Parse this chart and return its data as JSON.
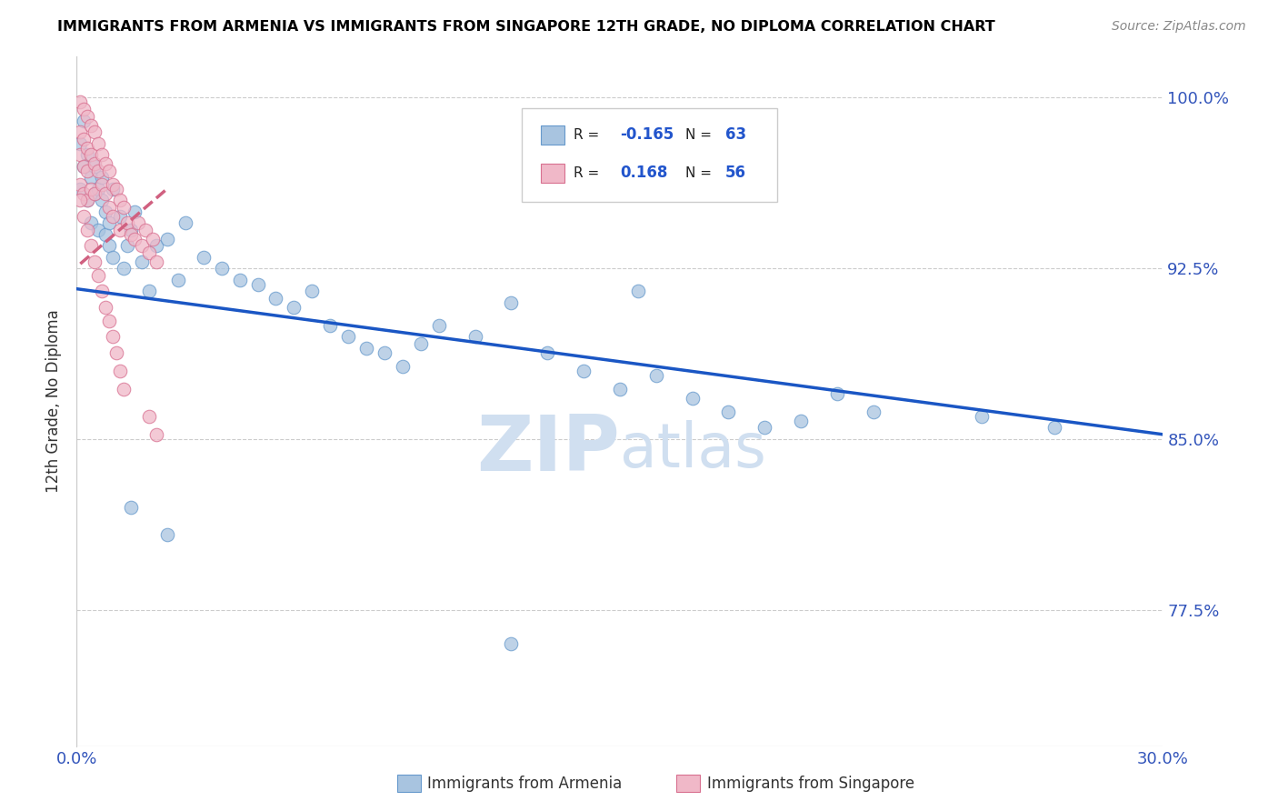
{
  "title": "IMMIGRANTS FROM ARMENIA VS IMMIGRANTS FROM SINGAPORE 12TH GRADE, NO DIPLOMA CORRELATION CHART",
  "source": "Source: ZipAtlas.com",
  "ylabel": "12th Grade, No Diploma",
  "xlim": [
    0.0,
    0.3
  ],
  "ylim": [
    0.715,
    1.018
  ],
  "yticks": [
    0.775,
    0.85,
    0.925,
    1.0
  ],
  "yticklabels": [
    "77.5%",
    "85.0%",
    "92.5%",
    "100.0%"
  ],
  "xtick_positions": [
    0.0,
    0.05,
    0.1,
    0.15,
    0.2,
    0.25,
    0.3
  ],
  "xticklabels": [
    "0.0%",
    "",
    "",
    "",
    "",
    "",
    "30.0%"
  ],
  "armenia_color": "#a8c4e0",
  "armenia_edge": "#6699cc",
  "singapore_color": "#f0b8c8",
  "singapore_edge": "#d87090",
  "armenia_line_color": "#1a56c4",
  "singapore_line_color": "#d06080",
  "watermark_color": "#d0dff0",
  "armenia_R": -0.165,
  "armenia_N": 63,
  "singapore_R": 0.168,
  "singapore_N": 56,
  "arm_line_x0": 0.0,
  "arm_line_y0": 0.916,
  "arm_line_x1": 0.3,
  "arm_line_y1": 0.852,
  "sing_line_x0": 0.001,
  "sing_line_y0": 0.927,
  "sing_line_x1": 0.025,
  "sing_line_y1": 0.96,
  "armenia_x": [
    0.001,
    0.001,
    0.002,
    0.002,
    0.003,
    0.003,
    0.004,
    0.004,
    0.005,
    0.005,
    0.006,
    0.006,
    0.007,
    0.007,
    0.008,
    0.008,
    0.009,
    0.009,
    0.01,
    0.01,
    0.012,
    0.013,
    0.014,
    0.015,
    0.016,
    0.018,
    0.02,
    0.022,
    0.025,
    0.028,
    0.03,
    0.035,
    0.04,
    0.045,
    0.05,
    0.055,
    0.06,
    0.065,
    0.07,
    0.075,
    0.08,
    0.085,
    0.09,
    0.095,
    0.1,
    0.11,
    0.12,
    0.13,
    0.14,
    0.15,
    0.155,
    0.16,
    0.17,
    0.18,
    0.19,
    0.2,
    0.21,
    0.22,
    0.25,
    0.27,
    0.015,
    0.025,
    0.12
  ],
  "armenia_y": [
    0.96,
    0.98,
    0.97,
    0.99,
    0.975,
    0.955,
    0.965,
    0.945,
    0.958,
    0.97,
    0.942,
    0.96,
    0.955,
    0.965,
    0.94,
    0.95,
    0.935,
    0.945,
    0.96,
    0.93,
    0.948,
    0.925,
    0.935,
    0.942,
    0.95,
    0.928,
    0.915,
    0.935,
    0.938,
    0.92,
    0.945,
    0.93,
    0.925,
    0.92,
    0.918,
    0.912,
    0.908,
    0.915,
    0.9,
    0.895,
    0.89,
    0.888,
    0.882,
    0.892,
    0.9,
    0.895,
    0.91,
    0.888,
    0.88,
    0.872,
    0.915,
    0.878,
    0.868,
    0.862,
    0.855,
    0.858,
    0.87,
    0.862,
    0.86,
    0.855,
    0.82,
    0.808,
    0.76
  ],
  "singapore_x": [
    0.001,
    0.001,
    0.001,
    0.001,
    0.002,
    0.002,
    0.002,
    0.002,
    0.003,
    0.003,
    0.003,
    0.003,
    0.004,
    0.004,
    0.004,
    0.005,
    0.005,
    0.005,
    0.006,
    0.006,
    0.007,
    0.007,
    0.008,
    0.008,
    0.009,
    0.009,
    0.01,
    0.01,
    0.011,
    0.012,
    0.012,
    0.013,
    0.014,
    0.015,
    0.016,
    0.017,
    0.018,
    0.019,
    0.02,
    0.021,
    0.022,
    0.001,
    0.002,
    0.003,
    0.004,
    0.005,
    0.006,
    0.007,
    0.008,
    0.009,
    0.01,
    0.011,
    0.012,
    0.013,
    0.02,
    0.022
  ],
  "singapore_y": [
    0.998,
    0.985,
    0.975,
    0.962,
    0.995,
    0.982,
    0.97,
    0.958,
    0.992,
    0.978,
    0.968,
    0.955,
    0.988,
    0.975,
    0.96,
    0.985,
    0.971,
    0.958,
    0.98,
    0.968,
    0.975,
    0.962,
    0.971,
    0.958,
    0.968,
    0.952,
    0.962,
    0.948,
    0.96,
    0.955,
    0.942,
    0.952,
    0.945,
    0.94,
    0.938,
    0.945,
    0.935,
    0.942,
    0.932,
    0.938,
    0.928,
    0.955,
    0.948,
    0.942,
    0.935,
    0.928,
    0.922,
    0.915,
    0.908,
    0.902,
    0.895,
    0.888,
    0.88,
    0.872,
    0.86,
    0.852
  ]
}
